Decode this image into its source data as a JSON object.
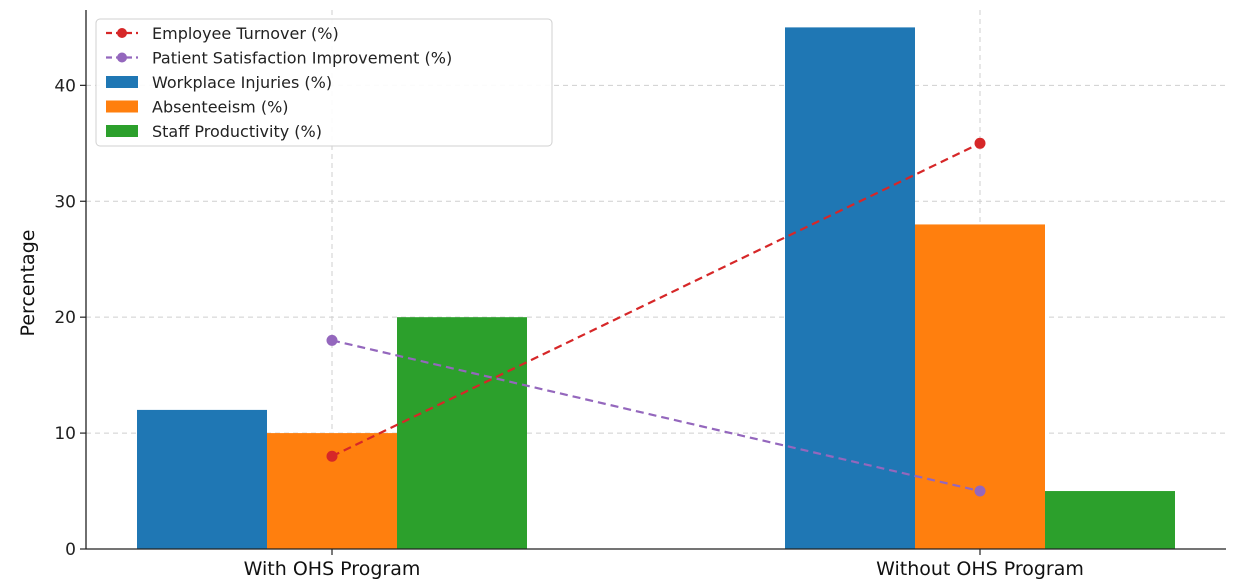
{
  "chart_data": {
    "type": "bar",
    "categories": [
      "With OHS Program",
      "Without OHS Program"
    ],
    "ylabel": "Percentage",
    "xlabel": "",
    "ylim": [
      0,
      46.5
    ],
    "yticks": [
      0,
      10,
      20,
      30,
      40
    ],
    "grid": true,
    "legend_position": "top-left",
    "series": [
      {
        "name": "Workplace Injuries (%)",
        "kind": "bar",
        "color": "#1f77b4",
        "values": [
          12,
          45
        ]
      },
      {
        "name": "Absenteeism (%)",
        "kind": "bar",
        "color": "#ff7f0e",
        "values": [
          10,
          28
        ]
      },
      {
        "name": "Staff Productivity (%)",
        "kind": "bar",
        "color": "#2ca02c",
        "values": [
          20,
          5
        ]
      },
      {
        "name": "Employee Turnover (%)",
        "kind": "line",
        "color": "#d62728",
        "values": [
          8,
          35
        ]
      },
      {
        "name": "Patient Satisfaction Improvement (%)",
        "kind": "line",
        "color": "#9467bd",
        "values": [
          18,
          5
        ]
      }
    ],
    "legend_order": [
      "Employee Turnover (%)",
      "Patient Satisfaction Improvement (%)",
      "Workplace Injuries (%)",
      "Absenteeism (%)",
      "Staff Productivity (%)"
    ]
  }
}
